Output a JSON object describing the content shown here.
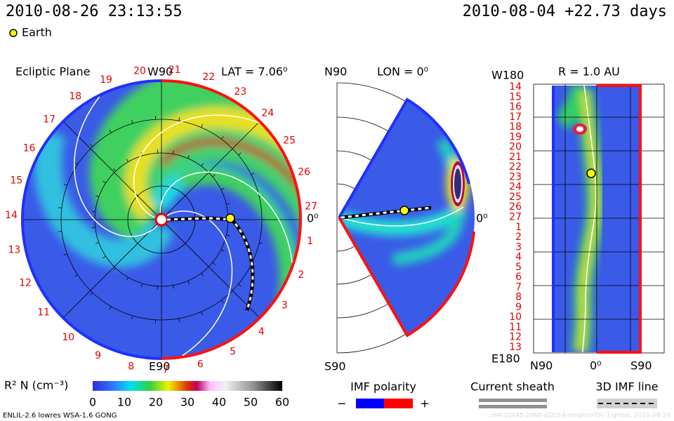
{
  "header": {
    "time": "2010-08-26 23:13:55",
    "reference": "2010-08-04 +22.73 days"
  },
  "legend": {
    "earth": "Earth"
  },
  "ecliptic": {
    "title": "Ecliptic Plane",
    "top_label": "W90",
    "lat_label": "LAT = 7.06⁰",
    "right_label": "0⁰",
    "bottom_label": "E90",
    "carrington": [
      "27",
      "1",
      "2",
      "3",
      "4",
      "5",
      "6",
      "7",
      "8",
      "9",
      "10",
      "11",
      "12",
      "13",
      "14",
      "15",
      "16",
      "17",
      "18",
      "19",
      "20",
      "21",
      "22",
      "23",
      "24",
      "25",
      "26"
    ]
  },
  "meridional": {
    "top_label": "N90",
    "lon_label": "LON = 0⁰",
    "right_label": "0⁰",
    "bottom_label": "S90"
  },
  "radial": {
    "top_label": "W180",
    "r_label": "R = 1.0 AU",
    "bottom_label": "E180",
    "x_labels": [
      "N90",
      "0⁰",
      "S90"
    ],
    "rows": [
      "14",
      "15",
      "16",
      "17",
      "18",
      "19",
      "20",
      "21",
      "22",
      "23",
      "24",
      "25",
      "26",
      "27",
      "1",
      "2",
      "3",
      "4",
      "5",
      "6",
      "7",
      "8",
      "9",
      "10",
      "11",
      "12",
      "13"
    ]
  },
  "colorbar": {
    "label": "R² N (cm⁻³)",
    "ticks": [
      "0",
      "10",
      "20",
      "30",
      "40",
      "50",
      "60"
    ]
  },
  "imf": {
    "title": "IMF polarity",
    "minus": "−",
    "plus": "+"
  },
  "sheath": {
    "title": "Current sheath"
  },
  "imf_line": {
    "title": "3D IMF line"
  },
  "footer": {
    "left": "ENLIL-2.6 lowres WSA-1.6 GONG",
    "right": "../64r10x45.2068-d2b3-4-emplsnrfdc-1.ghbdc 2010-08-26"
  }
}
